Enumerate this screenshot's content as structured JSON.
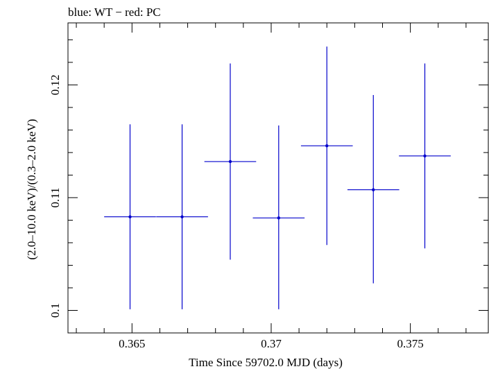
{
  "chart_data": {
    "type": "scatter",
    "title": "blue: WT − red: PC",
    "xlabel": "Time Since 59702.0 MJD (days)",
    "ylabel": "(2.0–10.0 keV)/(0.3–2.0 keV)",
    "xlim": [
      0.3627,
      0.3778
    ],
    "ylim": [
      0.098,
      0.1255
    ],
    "x_ticks": [
      0.365,
      0.37,
      0.375
    ],
    "x_tick_labels": [
      "0.365",
      "0.37",
      "0.375"
    ],
    "y_ticks": [
      0.1,
      0.11,
      0.12
    ],
    "y_tick_labels": [
      "0.1",
      "0.11",
      "0.12"
    ],
    "grid": false,
    "series": [
      {
        "color": "#0000cc",
        "points": [
          {
            "x": 0.36493,
            "y": 0.1083,
            "xerr": 0.00093,
            "yerr_low": 0.1001,
            "yerr_high": 0.1165
          },
          {
            "x": 0.3668,
            "y": 0.1083,
            "xerr": 0.00093,
            "yerr_low": 0.1001,
            "yerr_high": 0.1165
          },
          {
            "x": 0.36853,
            "y": 0.1132,
            "xerr": 0.00093,
            "yerr_low": 0.1045,
            "yerr_high": 0.1219
          },
          {
            "x": 0.37027,
            "y": 0.1082,
            "xerr": 0.00093,
            "yerr_low": 0.1001,
            "yerr_high": 0.1164
          },
          {
            "x": 0.372,
            "y": 0.1146,
            "xerr": 0.00093,
            "yerr_low": 0.1058,
            "yerr_high": 0.1234
          },
          {
            "x": 0.37367,
            "y": 0.1107,
            "xerr": 0.00093,
            "yerr_low": 0.1024,
            "yerr_high": 0.1191
          },
          {
            "x": 0.37552,
            "y": 0.1137,
            "xerr": 0.00093,
            "yerr_low": 0.1055,
            "yerr_high": 0.1219
          }
        ]
      }
    ]
  }
}
